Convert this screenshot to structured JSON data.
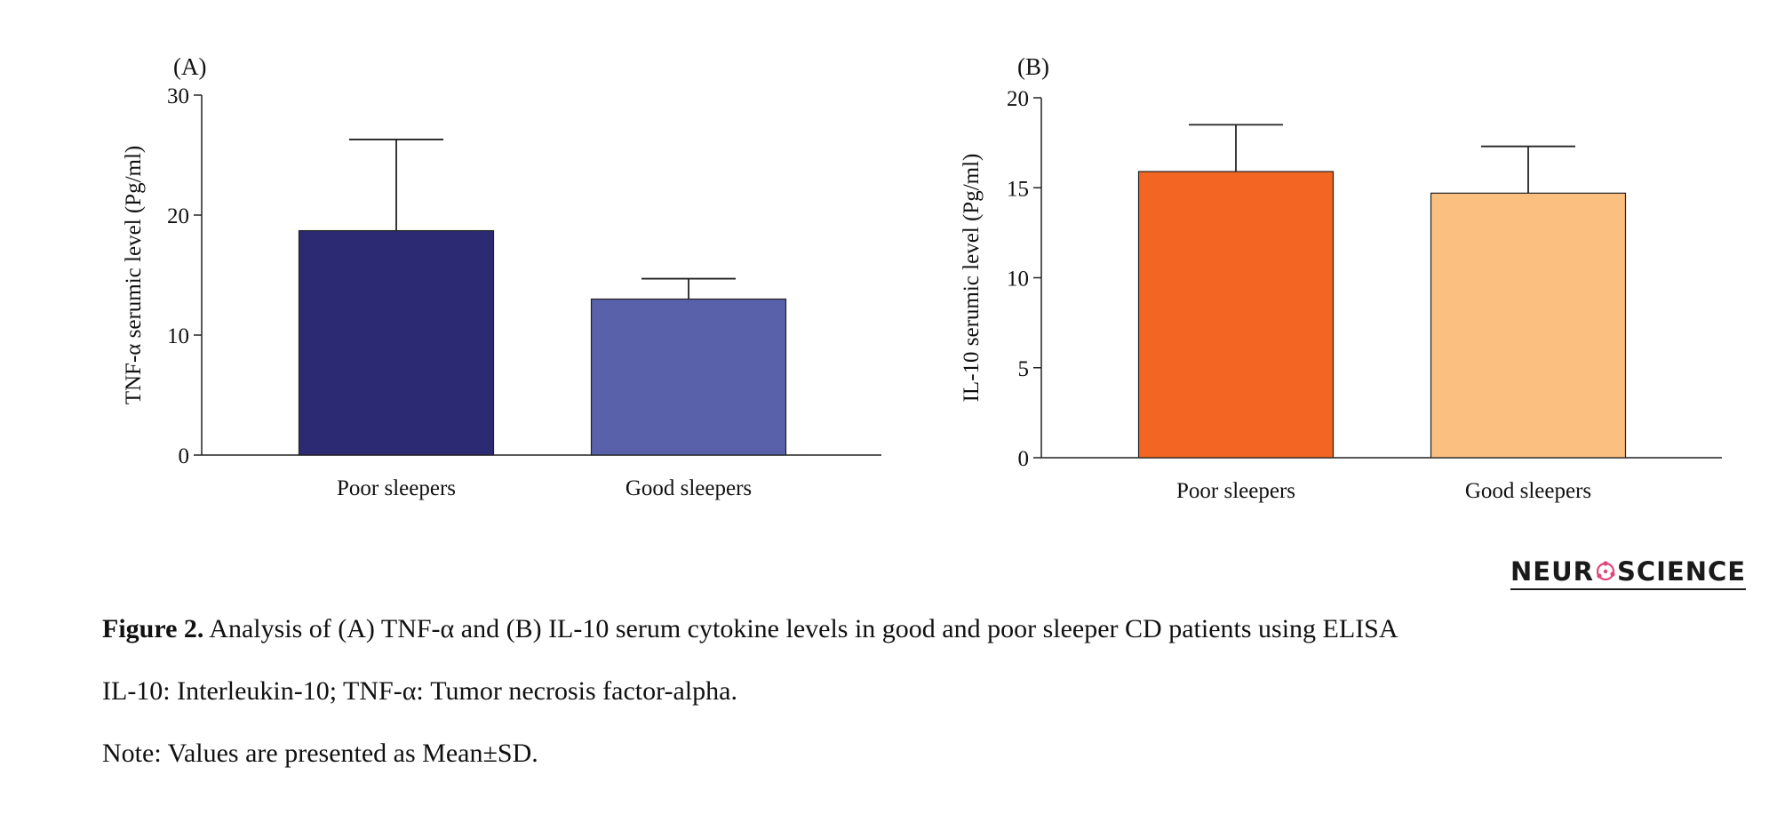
{
  "chart_data": [
    {
      "type": "bar",
      "panel_label": "(A)",
      "categories": [
        "Poor sleepers",
        "Good sleepers"
      ],
      "values": [
        18.7,
        13.0
      ],
      "errors": [
        7.6,
        1.7
      ],
      "ylabel": "TNF-α serumic level (Pg/ml)",
      "ylim": [
        0,
        30
      ],
      "yticks": [
        0,
        10,
        20,
        30
      ],
      "colors": [
        "#2b2a72",
        "#5961ab"
      ]
    },
    {
      "type": "bar",
      "panel_label": "(B)",
      "categories": [
        "Poor sleepers",
        "Good sleepers"
      ],
      "values": [
        15.9,
        14.7
      ],
      "errors": [
        2.6,
        2.6
      ],
      "ylabel": "IL-10 serumic level (Pg/ml)",
      "ylim": [
        0,
        20
      ],
      "yticks": [
        0,
        5,
        10,
        15,
        20
      ],
      "colors": [
        "#f26522",
        "#fbbf80"
      ]
    }
  ],
  "logo": {
    "text_left": "NEUR",
    "text_right": "SCIENCE"
  },
  "caption": {
    "figure_label": "Figure 2.",
    "figure_text": " Analysis of (A) TNF-α and (B) IL-10 serum cytokine levels in good and poor sleeper CD patients using ELISA",
    "abbreviations": "IL-10: Interleukin-10; TNF-α: Tumor necrosis factor-alpha.",
    "note": "Note: Values are presented as Mean±SD."
  }
}
